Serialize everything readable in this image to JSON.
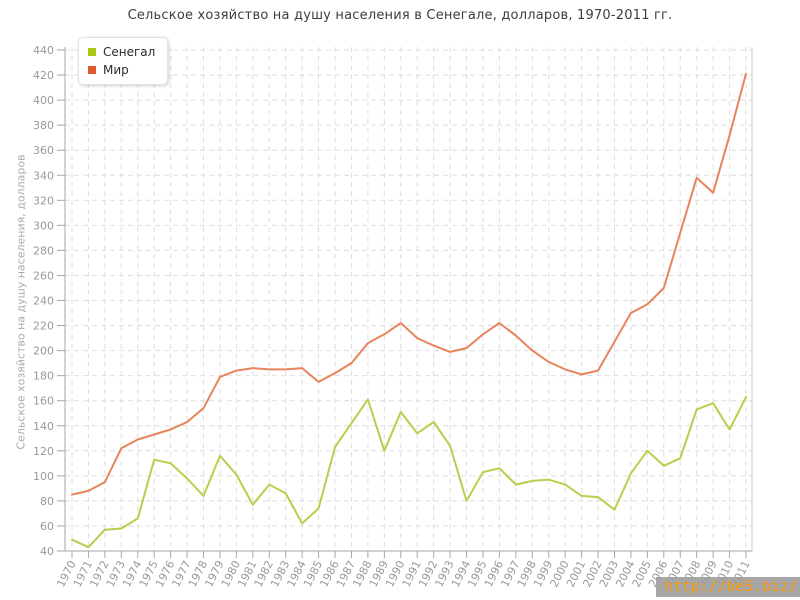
{
  "title": "Сельское хозяйство на душу населения в Сенегале, долларов, 1970-2011 гг.",
  "y_axis_label": "Сельское хозяйство на душу населения, долларов",
  "watermark": "http://be5.biz/",
  "colors": {
    "axis": "#a6a6a6",
    "grid": "#dedede",
    "plot_right_border": "#cccccc",
    "tick_text": "#999999",
    "title_text": "#3d3d3d",
    "legend_text": "#2b2b2b",
    "watermark_bg": "#9e9e9e",
    "watermark_text": "#ff9900"
  },
  "chart_data": {
    "type": "line",
    "title": "Сельское хозяйство на душу населения в Сенегале, долларов, 1970-2011 гг.",
    "xlabel": "",
    "ylabel": "Сельское хозяйство на душу населения, долларов",
    "ylim": [
      40,
      440
    ],
    "y_tick_step": 20,
    "grid": true,
    "legend_position": "top-left",
    "x": [
      1970,
      1971,
      1972,
      1973,
      1974,
      1975,
      1976,
      1977,
      1978,
      1979,
      1980,
      1981,
      1982,
      1983,
      1984,
      1985,
      1986,
      1987,
      1988,
      1989,
      1990,
      1991,
      1992,
      1993,
      1994,
      1995,
      1996,
      1997,
      1998,
      1999,
      2000,
      2001,
      2002,
      2003,
      2004,
      2005,
      2006,
      2007,
      2008,
      2009,
      2010,
      2011
    ],
    "series": [
      {
        "name": "Сенегал",
        "line_color": "#b5d04b",
        "swatch_color": "#a8c717",
        "values": [
          49,
          43,
          57,
          58,
          66,
          113,
          110,
          98,
          84,
          116,
          101,
          77,
          93,
          86,
          62,
          74,
          123,
          142,
          161,
          120,
          151,
          134,
          143,
          124,
          80,
          103,
          106,
          93,
          96,
          97,
          93,
          84,
          83,
          73,
          102,
          120,
          108,
          114,
          153,
          158,
          137,
          163
        ]
      },
      {
        "name": "Мир",
        "line_color": "#e8845c",
        "swatch_color": "#e2592c",
        "values": [
          85,
          88,
          95,
          122,
          129,
          133,
          137,
          143,
          154,
          179,
          184,
          186,
          185,
          185,
          186,
          175,
          182,
          190,
          206,
          213,
          222,
          210,
          204,
          199,
          202,
          213,
          222,
          212,
          200,
          191,
          185,
          181,
          184,
          207,
          230,
          237,
          250,
          294,
          338,
          326,
          372,
          421
        ]
      }
    ]
  }
}
